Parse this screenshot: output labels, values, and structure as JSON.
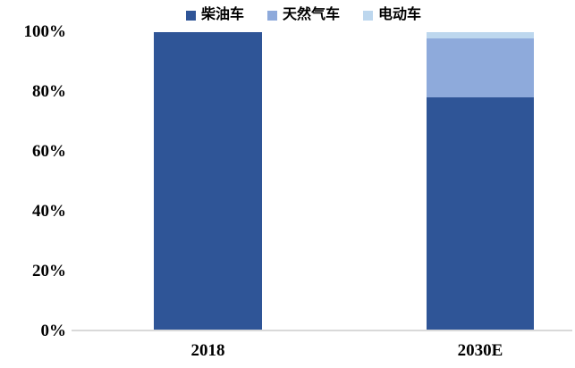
{
  "chart_data": {
    "type": "bar",
    "stacked": true,
    "percent_stacked": true,
    "title": "",
    "xlabel": "",
    "ylabel": "",
    "categories": [
      "2018",
      "2030E"
    ],
    "series": [
      {
        "name": "柴油车",
        "color": "#2F5597",
        "values": [
          100,
          78
        ]
      },
      {
        "name": "天然气车",
        "color": "#8EAADB",
        "values": [
          0,
          20
        ]
      },
      {
        "name": "电动车",
        "color": "#BDD7EE",
        "values": [
          0,
          2
        ]
      }
    ],
    "ylim": [
      0,
      100
    ],
    "yticks": [
      "0%",
      "20%",
      "40%",
      "60%",
      "80%",
      "100%"
    ],
    "grid": false,
    "legend_position": "top",
    "axis_line_color": "#D9D9D9",
    "background_color": "#FFFFFF"
  }
}
